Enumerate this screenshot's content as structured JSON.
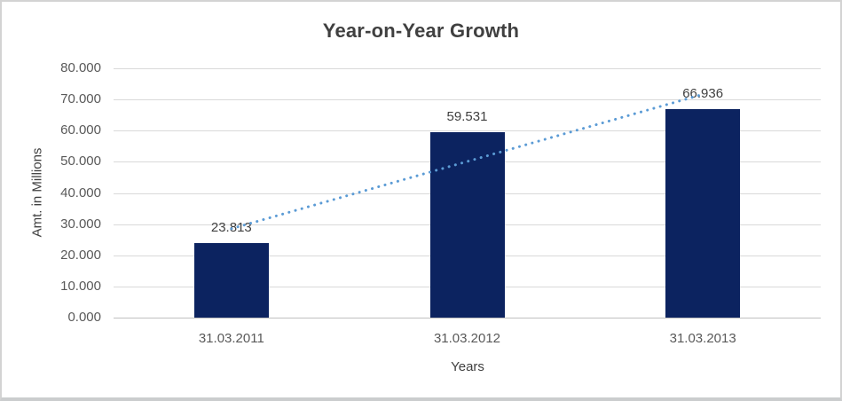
{
  "frame": {
    "background": "#ffffff",
    "border_color": "#d3d3d3"
  },
  "chart_data": {
    "type": "bar",
    "title": "Year-on-Year Growth",
    "categories": [
      "31.03.2011",
      "31.03.2012",
      "31.03.2013"
    ],
    "values": [
      23.813,
      59.531,
      66.936
    ],
    "data_labels": [
      "23.813",
      "59.531",
      "66.936"
    ],
    "xlabel": "Years",
    "ylabel": "Amt. in Millions",
    "ylim": [
      0,
      80
    ],
    "yticks": [
      0,
      10,
      20,
      30,
      40,
      50,
      60,
      70,
      80
    ],
    "ytick_labels": [
      "0.000",
      "10.000",
      "20.000",
      "30.000",
      "40.000",
      "50.000",
      "60.000",
      "70.000",
      "80.000"
    ],
    "grid": true,
    "legend": "none",
    "bar_color": "#0c2360",
    "gridline_color": "#d9d9d9",
    "axis_line_color": "#bfbfbf",
    "tick_text_color": "#595959",
    "label_text_color": "#404040",
    "title_color": "#404040",
    "trendline": {
      "type": "linear",
      "style": "dotted",
      "color": "#5b9bd5"
    }
  }
}
